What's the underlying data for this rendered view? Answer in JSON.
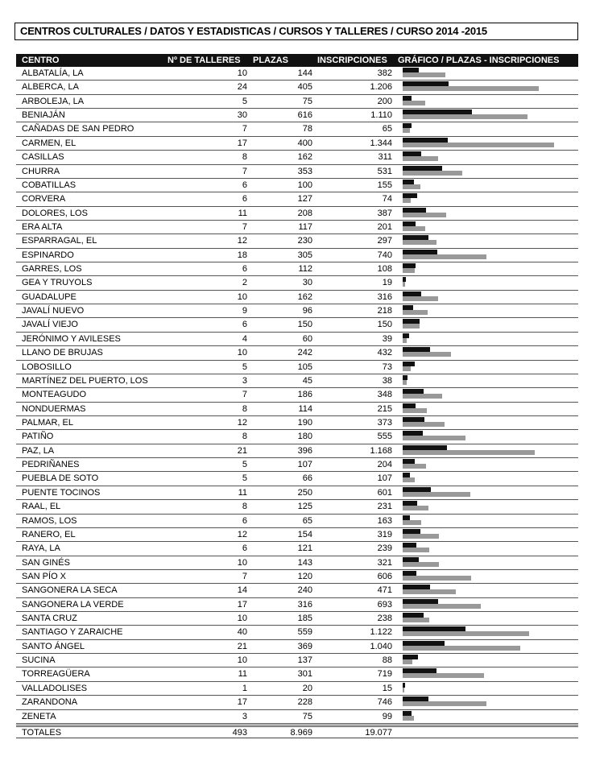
{
  "title": "CENTROS CULTURALES / DATOS Y ESTADISTICAS / CURSOS Y TALLERES / CURSO 2014 -2015",
  "headers": {
    "centro": "CENTRO",
    "talleres": "Nº DE TALLERES",
    "plazas": "PLAZAS",
    "inscripciones": "INSCRIPCIONES",
    "grafico": "GRÁFICO / PLAZAS - INSCRIPCIONES"
  },
  "colors": {
    "plazas_bar": "#111111",
    "inscripciones_bar": "#999999"
  },
  "rows": [
    {
      "centro": "ALBATALÍA, LA",
      "talleres": "10",
      "plazas": "144",
      "inscripciones": "382"
    },
    {
      "centro": "ALBERCA, LA",
      "talleres": "24",
      "plazas": "405",
      "inscripciones": "1.206"
    },
    {
      "centro": "ARBOLEJA, LA",
      "talleres": "5",
      "plazas": "75",
      "inscripciones": "200"
    },
    {
      "centro": "BENIAJÁN",
      "talleres": "30",
      "plazas": "616",
      "inscripciones": "1.110"
    },
    {
      "centro": "CAÑADAS DE SAN PEDRO",
      "talleres": "7",
      "plazas": "78",
      "inscripciones": "65"
    },
    {
      "centro": "CARMEN, EL",
      "talleres": "17",
      "plazas": "400",
      "inscripciones": "1.344"
    },
    {
      "centro": "CASILLAS",
      "talleres": "8",
      "plazas": "162",
      "inscripciones": "311"
    },
    {
      "centro": "CHURRA",
      "talleres": "7",
      "plazas": "353",
      "inscripciones": "531"
    },
    {
      "centro": "COBATILLAS",
      "talleres": "6",
      "plazas": "100",
      "inscripciones": "155"
    },
    {
      "centro": "CORVERA",
      "talleres": "6",
      "plazas": "127",
      "inscripciones": "74"
    },
    {
      "centro": "DOLORES, LOS",
      "talleres": "11",
      "plazas": "208",
      "inscripciones": "387"
    },
    {
      "centro": "ERA ALTA",
      "talleres": "7",
      "plazas": "117",
      "inscripciones": "201"
    },
    {
      "centro": "ESPARRAGAL, EL",
      "talleres": "12",
      "plazas": "230",
      "inscripciones": "297"
    },
    {
      "centro": "ESPINARDO",
      "talleres": "18",
      "plazas": "305",
      "inscripciones": "740"
    },
    {
      "centro": "GARRES, LOS",
      "talleres": "6",
      "plazas": "112",
      "inscripciones": "108"
    },
    {
      "centro": "GEA Y TRUYOLS",
      "talleres": "2",
      "plazas": "30",
      "inscripciones": "19"
    },
    {
      "centro": "GUADALUPE",
      "talleres": "10",
      "plazas": "162",
      "inscripciones": "316"
    },
    {
      "centro": "JAVALÍ NUEVO",
      "talleres": "9",
      "plazas": "96",
      "inscripciones": "218"
    },
    {
      "centro": "JAVALÍ VIEJO",
      "talleres": "6",
      "plazas": "150",
      "inscripciones": "150"
    },
    {
      "centro": "JERÓNIMO Y AVILESES",
      "talleres": "4",
      "plazas": "60",
      "inscripciones": "39"
    },
    {
      "centro": "LLANO DE BRUJAS",
      "talleres": "10",
      "plazas": "242",
      "inscripciones": "432"
    },
    {
      "centro": "LOBOSILLO",
      "talleres": "5",
      "plazas": "105",
      "inscripciones": "73"
    },
    {
      "centro": "MARTÍNEZ DEL PUERTO, LOS",
      "talleres": "3",
      "plazas": "45",
      "inscripciones": "38"
    },
    {
      "centro": "MONTEAGUDO",
      "talleres": "7",
      "plazas": "186",
      "inscripciones": "348"
    },
    {
      "centro": "NONDUERMAS",
      "talleres": "8",
      "plazas": "114",
      "inscripciones": "215"
    },
    {
      "centro": "PALMAR, EL",
      "talleres": "12",
      "plazas": "190",
      "inscripciones": "373"
    },
    {
      "centro": "PATIÑO",
      "talleres": "8",
      "plazas": "180",
      "inscripciones": "555"
    },
    {
      "centro": "PAZ, LA",
      "talleres": "21",
      "plazas": "396",
      "inscripciones": "1.168"
    },
    {
      "centro": "PEDRIÑANES",
      "talleres": "5",
      "plazas": "107",
      "inscripciones": "204"
    },
    {
      "centro": "PUEBLA DE SOTO",
      "talleres": "5",
      "plazas": "66",
      "inscripciones": "107"
    },
    {
      "centro": "PUENTE TOCINOS",
      "talleres": "11",
      "plazas": "250",
      "inscripciones": "601"
    },
    {
      "centro": "RAAL, EL",
      "talleres": "8",
      "plazas": "125",
      "inscripciones": "231"
    },
    {
      "centro": "RAMOS, LOS",
      "talleres": "6",
      "plazas": "65",
      "inscripciones": "163"
    },
    {
      "centro": "RANERO, EL",
      "talleres": "12",
      "plazas": "154",
      "inscripciones": "319"
    },
    {
      "centro": "RAYA, LA",
      "talleres": "6",
      "plazas": "121",
      "inscripciones": "239"
    },
    {
      "centro": "SAN GINÉS",
      "talleres": "10",
      "plazas": "143",
      "inscripciones": "321"
    },
    {
      "centro": "SAN PÍO X",
      "talleres": "7",
      "plazas": "120",
      "inscripciones": "606"
    },
    {
      "centro": "SANGONERA LA SECA",
      "talleres": "14",
      "plazas": "240",
      "inscripciones": "471"
    },
    {
      "centro": "SANGONERA LA VERDE",
      "talleres": "17",
      "plazas": "316",
      "inscripciones": "693"
    },
    {
      "centro": "SANTA CRUZ",
      "talleres": "10",
      "plazas": "185",
      "inscripciones": "238"
    },
    {
      "centro": "SANTIAGO Y ZARAICHE",
      "talleres": "40",
      "plazas": "559",
      "inscripciones": "1.122"
    },
    {
      "centro": "SANTO ÁNGEL",
      "talleres": "21",
      "plazas": "369",
      "inscripciones": "1.040"
    },
    {
      "centro": "SUCINA",
      "talleres": "10",
      "plazas": "137",
      "inscripciones": "88"
    },
    {
      "centro": "TORREAGÜERA",
      "talleres": "11",
      "plazas": "301",
      "inscripciones": "719"
    },
    {
      "centro": "VALLADOLISES",
      "talleres": "1",
      "plazas": "20",
      "inscripciones": "15"
    },
    {
      "centro": "ZARANDONA",
      "talleres": "17",
      "plazas": "228",
      "inscripciones": "746"
    },
    {
      "centro": "ZENETA",
      "talleres": "3",
      "plazas": "75",
      "inscripciones": "99"
    }
  ],
  "totals": {
    "label": "TOTALES",
    "talleres": "493",
    "plazas": "8.969",
    "inscripciones": "19.077"
  }
}
